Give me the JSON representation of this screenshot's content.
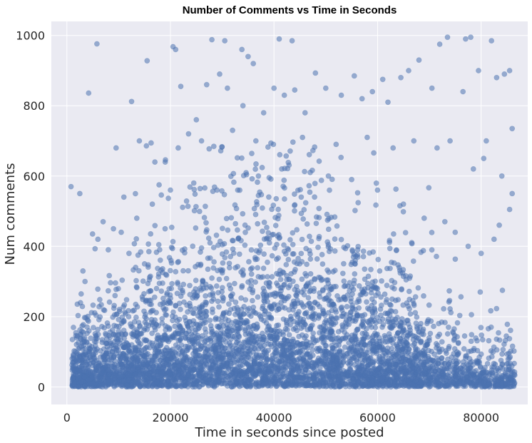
{
  "chart_data": {
    "type": "scatter",
    "title": "Number of Comments vs Time in Seconds",
    "xlabel": "Time in seconds since posted",
    "ylabel": "Num comments",
    "xlim": [
      -3000,
      89000
    ],
    "ylim": [
      -50,
      1040
    ],
    "xticks": [
      0,
      20000,
      40000,
      60000,
      80000
    ],
    "xtick_labels": [
      "0",
      "20000",
      "40000",
      "60000",
      "80000"
    ],
    "yticks": [
      0,
      200,
      400,
      600,
      800,
      1000
    ],
    "ytick_labels": [
      "0",
      "200",
      "400",
      "600",
      "800",
      "1000"
    ],
    "grid": true,
    "marker_alpha": 0.55,
    "series": [
      {
        "name": "",
        "points": [
          [
            800,
            570
          ],
          [
            2500,
            550
          ],
          [
            4200,
            836
          ],
          [
            5800,
            976
          ],
          [
            12500,
            812
          ],
          [
            15500,
            928
          ],
          [
            20500,
            968
          ],
          [
            21000,
            960
          ],
          [
            22000,
            855
          ],
          [
            28000,
            988
          ],
          [
            30500,
            985
          ],
          [
            33800,
            960
          ],
          [
            35000,
            940
          ],
          [
            36000,
            920
          ],
          [
            41000,
            990
          ],
          [
            43500,
            985
          ],
          [
            48000,
            893
          ],
          [
            53000,
            830
          ],
          [
            55500,
            885
          ],
          [
            59000,
            840
          ],
          [
            61000,
            875
          ],
          [
            64500,
            880
          ],
          [
            68000,
            930
          ],
          [
            72000,
            975
          ],
          [
            73500,
            995
          ],
          [
            77000,
            990
          ],
          [
            78000,
            995
          ],
          [
            79500,
            900
          ],
          [
            82000,
            985
          ],
          [
            84500,
            890
          ],
          [
            85500,
            900
          ],
          [
            86000,
            735
          ],
          [
            83000,
            880
          ],
          [
            81000,
            700
          ],
          [
            76500,
            840
          ],
          [
            70500,
            850
          ],
          [
            66000,
            900
          ],
          [
            62000,
            810
          ],
          [
            57000,
            820
          ],
          [
            50000,
            850
          ],
          [
            46000,
            780
          ],
          [
            44000,
            845
          ],
          [
            42000,
            830
          ],
          [
            40000,
            850
          ],
          [
            38000,
            780
          ],
          [
            34000,
            800
          ],
          [
            31000,
            850
          ],
          [
            29500,
            890
          ],
          [
            27000,
            860
          ],
          [
            25000,
            760
          ],
          [
            23500,
            720
          ],
          [
            21500,
            680
          ],
          [
            19000,
            640
          ],
          [
            17000,
            640
          ],
          [
            14000,
            700
          ],
          [
            11000,
            540
          ],
          [
            9000,
            450
          ],
          [
            9500,
            680
          ],
          [
            7000,
            470
          ],
          [
            3500,
            300
          ],
          [
            6000,
            420
          ],
          [
            8000,
            390
          ],
          [
            26000,
            700
          ],
          [
            32000,
            730
          ],
          [
            36500,
            700
          ],
          [
            45500,
            710
          ],
          [
            52000,
            690
          ],
          [
            58000,
            710
          ],
          [
            63000,
            680
          ],
          [
            67000,
            700
          ],
          [
            71500,
            680
          ],
          [
            74000,
            700
          ],
          [
            78500,
            620
          ],
          [
            80500,
            650
          ],
          [
            84000,
            600
          ],
          [
            86000,
            550
          ],
          [
            85500,
            505
          ],
          [
            83500,
            460
          ],
          [
            82500,
            420
          ],
          [
            80000,
            380
          ],
          [
            77500,
            400
          ],
          [
            75000,
            440
          ],
          [
            73000,
            470
          ],
          [
            69000,
            480
          ],
          [
            65000,
            520
          ],
          [
            60000,
            560
          ],
          [
            55000,
            590
          ],
          [
            50500,
            600
          ],
          [
            47000,
            610
          ],
          [
            41500,
            620
          ],
          [
            37000,
            600
          ],
          [
            33000,
            560
          ],
          [
            29000,
            560
          ],
          [
            24500,
            580
          ],
          [
            20000,
            560
          ],
          [
            16500,
            520
          ],
          [
            13500,
            480
          ],
          [
            10500,
            440
          ],
          [
            12000,
            380
          ],
          [
            15000,
            350
          ]
        ]
      }
    ]
  }
}
